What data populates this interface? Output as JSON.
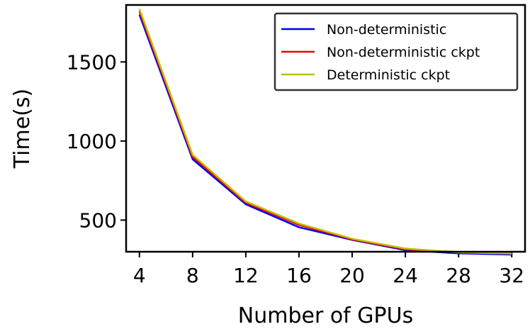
{
  "chart_data": {
    "type": "line",
    "xlabel": "Number of GPUs",
    "ylabel": "Time(s)",
    "x": [
      4,
      8,
      12,
      16,
      20,
      24,
      28,
      32
    ],
    "xlim": [
      3,
      33
    ],
    "ylim": [
      300,
      1860
    ],
    "yticks": [
      500,
      1000,
      1500
    ],
    "grid": false,
    "legend_position": "top-right",
    "series": [
      {
        "name": "Non-deterministic",
        "color": "#0000ee",
        "values": [
          1800,
          885,
          600,
          455,
          375,
          310,
          290,
          282
        ]
      },
      {
        "name": "Non-deterministic ckpt",
        "color": "#ee0000",
        "values": [
          1820,
          900,
          610,
          470,
          378,
          315,
          298,
          292
        ]
      },
      {
        "name": "Deterministic ckpt",
        "color": "#bfbf00",
        "values": [
          1835,
          912,
          618,
          478,
          382,
          320,
          296,
          288
        ]
      }
    ]
  }
}
